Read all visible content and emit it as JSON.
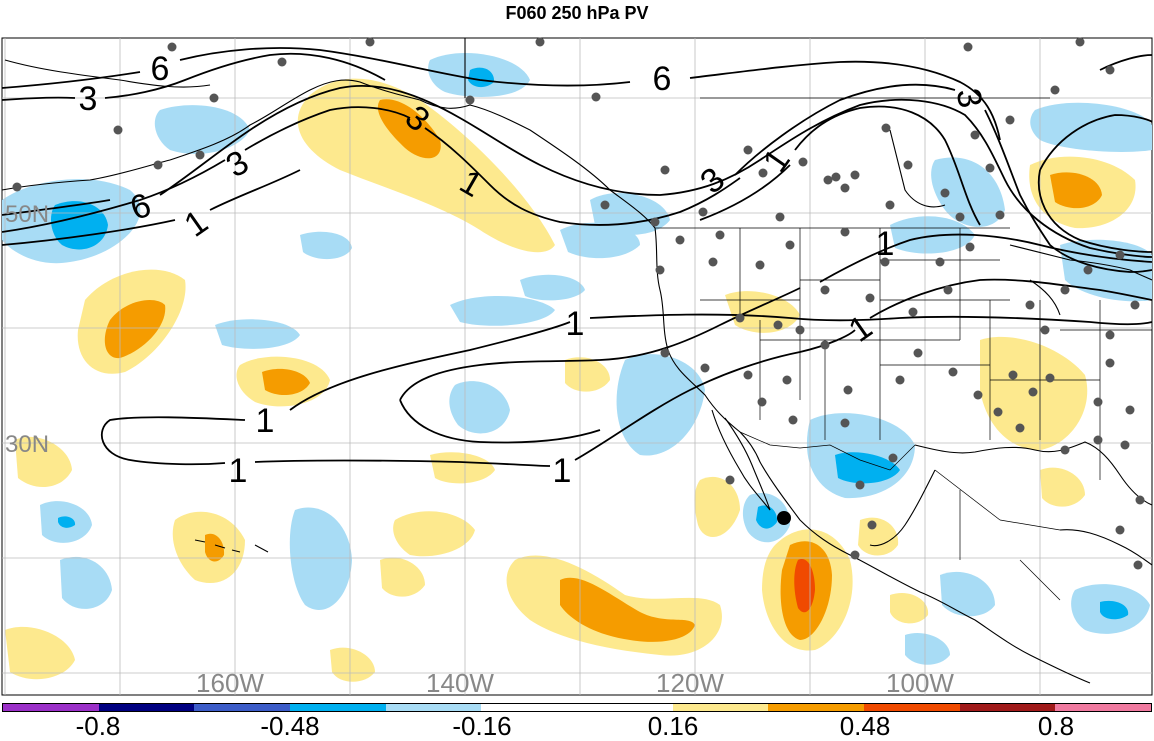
{
  "title": "F060 250 hPa PV",
  "lat_labels": [
    "50N",
    "30N"
  ],
  "lon_labels": [
    "160W",
    "140W",
    "120W",
    "100W"
  ],
  "contour_labels": {
    "one": "1",
    "three": "3",
    "six": "6"
  },
  "colorbar": {
    "colors": [
      "#9b30c8",
      "#000080",
      "#3c5cc8",
      "#00b0f0",
      "#a8dcf5",
      "#ffffff",
      "#ffffff",
      "#fde98e",
      "#f59c00",
      "#f04a00",
      "#a01a1a",
      "#f07aa0"
    ],
    "labels": [
      "-0.8",
      "-0.48",
      "-0.16",
      "0.16",
      "0.48",
      "0.8"
    ]
  },
  "colors": {
    "light_blue": "#a8dcf5",
    "blue": "#00b0f0",
    "light_yellow": "#fde98e",
    "orange": "#f59c00",
    "red_orange": "#f04a00",
    "station_dot": "#555555"
  }
}
